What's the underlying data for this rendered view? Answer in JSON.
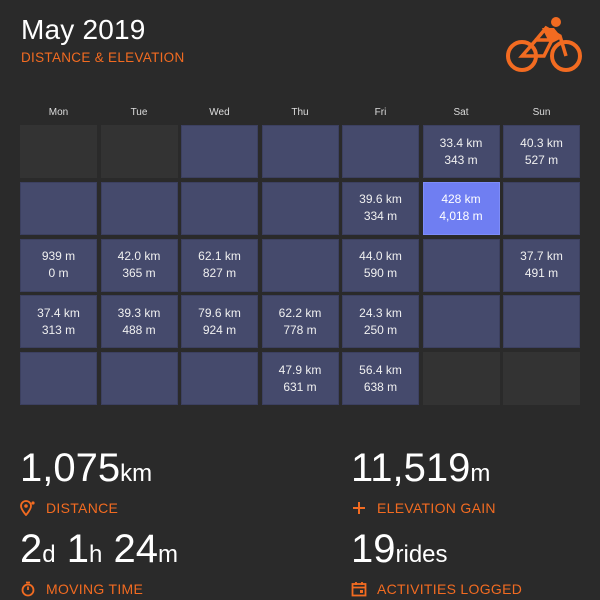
{
  "header": {
    "title": "May 2019",
    "subtitle": "DISTANCE & ELEVATION",
    "logo_icon": "cyclist-icon",
    "accent_color": "#f26b21"
  },
  "calendar": {
    "weekdays": [
      "Mon",
      "Tue",
      "Wed",
      "Thu",
      "Fri",
      "Sat",
      "Sun"
    ],
    "weeks": [
      [
        {
          "empty": true
        },
        {
          "empty": true
        },
        {
          "distance": "",
          "elevation": ""
        },
        {
          "distance": "",
          "elevation": ""
        },
        {
          "distance": "",
          "elevation": ""
        },
        {
          "distance": "33.4 km",
          "elevation": "343 m"
        },
        {
          "distance": "40.3 km",
          "elevation": "527 m"
        }
      ],
      [
        {
          "distance": "",
          "elevation": ""
        },
        {
          "distance": "",
          "elevation": ""
        },
        {
          "distance": "",
          "elevation": ""
        },
        {
          "distance": "",
          "elevation": ""
        },
        {
          "distance": "39.6 km",
          "elevation": "334 m"
        },
        {
          "distance": "428 km",
          "elevation": "4,018 m",
          "highlight": true
        },
        {
          "distance": "",
          "elevation": ""
        }
      ],
      [
        {
          "distance": "939 m",
          "elevation": "0 m"
        },
        {
          "distance": "42.0 km",
          "elevation": "365 m"
        },
        {
          "distance": "62.1 km",
          "elevation": "827 m"
        },
        {
          "distance": "",
          "elevation": ""
        },
        {
          "distance": "44.0 km",
          "elevation": "590 m"
        },
        {
          "distance": "",
          "elevation": ""
        },
        {
          "distance": "37.7 km",
          "elevation": "491 m"
        }
      ],
      [
        {
          "distance": "37.4 km",
          "elevation": "313 m"
        },
        {
          "distance": "39.3 km",
          "elevation": "488 m"
        },
        {
          "distance": "79.6 km",
          "elevation": "924 m"
        },
        {
          "distance": "62.2 km",
          "elevation": "778 m"
        },
        {
          "distance": "24.3 km",
          "elevation": "250 m"
        },
        {
          "distance": "",
          "elevation": ""
        },
        {
          "distance": "",
          "elevation": ""
        }
      ],
      [
        {
          "distance": "",
          "elevation": ""
        },
        {
          "distance": "",
          "elevation": ""
        },
        {
          "distance": "",
          "elevation": ""
        },
        {
          "distance": "47.9 km",
          "elevation": "631 m"
        },
        {
          "distance": "56.4 km",
          "elevation": "638 m"
        },
        {
          "empty": true
        },
        {
          "empty": true
        }
      ]
    ]
  },
  "stats": {
    "distance": {
      "value": "1,075",
      "unit": "km",
      "label": "DISTANCE",
      "icon": "map-pin-icon"
    },
    "elevation": {
      "value": "11,519",
      "unit": "m",
      "label": "ELEVATION GAIN",
      "icon": "plus-icon"
    },
    "moving_time": {
      "days": "2",
      "days_unit": "d",
      "hours": "1",
      "hours_unit": "h",
      "minutes": "24",
      "minutes_unit": "m",
      "label": "MOVING TIME",
      "icon": "stopwatch-icon"
    },
    "activities": {
      "value": "19",
      "unit": "rides",
      "label": "ACTIVITIES LOGGED",
      "icon": "calendar-icon"
    }
  }
}
